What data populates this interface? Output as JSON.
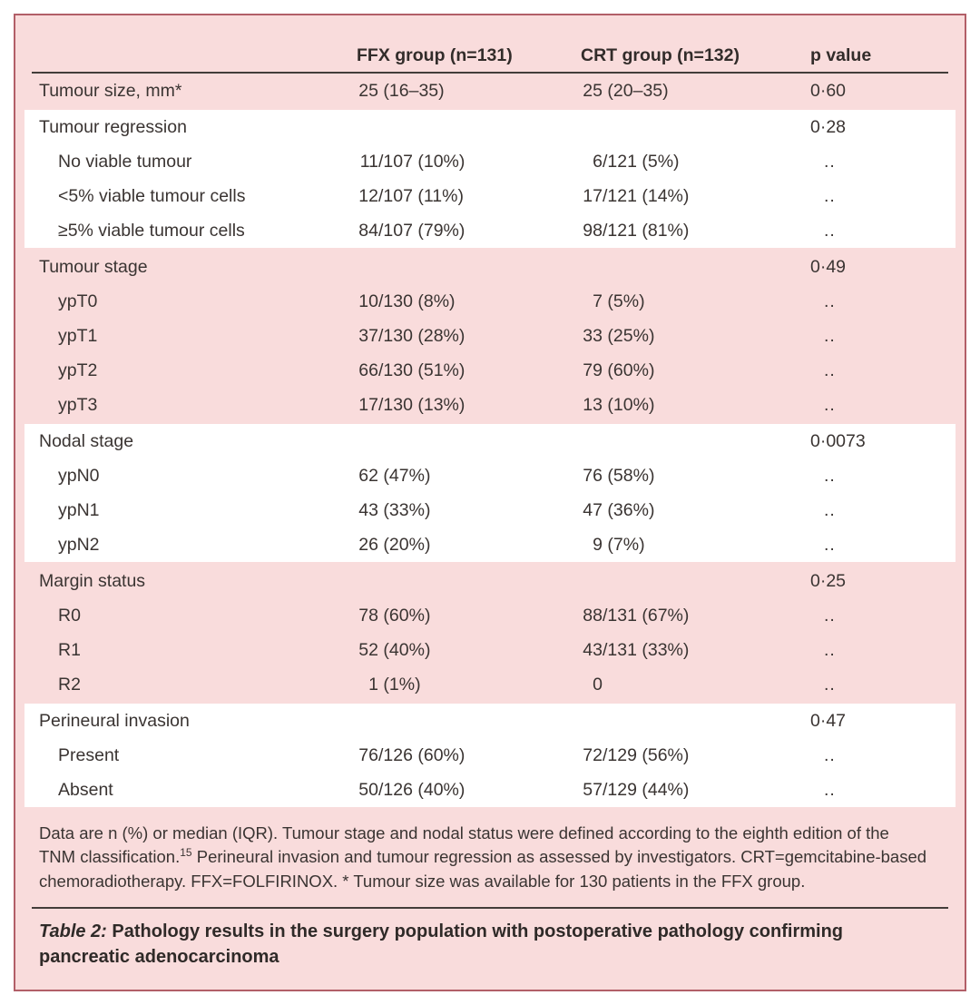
{
  "meta": {
    "panel_background": "#f9dcdc",
    "panel_border": "#b25f68",
    "stripe_background": "#ffffff",
    "text_color": "#3a3432",
    "rule_color": "#433d3a"
  },
  "table": {
    "columns": [
      "",
      "FFX group (n=131)",
      "CRT group (n=132)",
      "p value"
    ],
    "sections": [
      {
        "bg": "pink",
        "rows": [
          {
            "label": "Tumour size, mm*",
            "indent": false,
            "ffx": "25 (16–35)",
            "crt": "25 (20–35)",
            "p": "0·60"
          }
        ]
      },
      {
        "bg": "white",
        "rows": [
          {
            "label": "Tumour regression",
            "indent": false,
            "ffx": "",
            "crt": "",
            "p": "0·28"
          },
          {
            "label": "No viable tumour",
            "indent": true,
            "ffx": "11/107 (10%)",
            "crt": "6/121 (5%)",
            "p": ".."
          },
          {
            "label": "<5% viable tumour cells",
            "indent": true,
            "ffx": "12/107 (11%)",
            "crt": "17/121 (14%)",
            "p": ".."
          },
          {
            "label": "≥5% viable tumour cells",
            "indent": true,
            "ffx": "84/107 (79%)",
            "crt": "98/121 (81%)",
            "p": ".."
          }
        ]
      },
      {
        "bg": "pink",
        "rows": [
          {
            "label": "Tumour stage",
            "indent": false,
            "ffx": "",
            "crt": "",
            "p": "0·49"
          },
          {
            "label": "ypT0",
            "indent": true,
            "ffx": "10/130 (8%)",
            "crt": "7 (5%)",
            "p": ".."
          },
          {
            "label": "ypT1",
            "indent": true,
            "ffx": "37/130 (28%)",
            "crt": "33 (25%)",
            "p": ".."
          },
          {
            "label": "ypT2",
            "indent": true,
            "ffx": "66/130 (51%)",
            "crt": "79 (60%)",
            "p": ".."
          },
          {
            "label": "ypT3",
            "indent": true,
            "ffx": "17/130 (13%)",
            "crt": "13 (10%)",
            "p": ".."
          }
        ]
      },
      {
        "bg": "white",
        "rows": [
          {
            "label": "Nodal stage",
            "indent": false,
            "ffx": "",
            "crt": "",
            "p": "0·0073"
          },
          {
            "label": "ypN0",
            "indent": true,
            "ffx": "62 (47%)",
            "crt": "76 (58%)",
            "p": ".."
          },
          {
            "label": "ypN1",
            "indent": true,
            "ffx": "43 (33%)",
            "crt": "47 (36%)",
            "p": ".."
          },
          {
            "label": "ypN2",
            "indent": true,
            "ffx": "26 (20%)",
            "crt": "9 (7%)",
            "p": ".."
          }
        ]
      },
      {
        "bg": "pink",
        "rows": [
          {
            "label": "Margin status",
            "indent": false,
            "ffx": "",
            "crt": "",
            "p": "0·25"
          },
          {
            "label": "R0",
            "indent": true,
            "ffx": "78 (60%)",
            "crt": "88/131 (67%)",
            "p": ".."
          },
          {
            "label": "R1",
            "indent": true,
            "ffx": "52 (40%)",
            "crt": "43/131 (33%)",
            "p": ".."
          },
          {
            "label": "R2",
            "indent": true,
            "ffx": "1 (1%)",
            "crt": "0",
            "p": ".."
          }
        ]
      },
      {
        "bg": "white",
        "rows": [
          {
            "label": "Perineural invasion",
            "indent": false,
            "ffx": "",
            "crt": "",
            "p": "0·47"
          },
          {
            "label": "Present",
            "indent": true,
            "ffx": "76/126 (60%)",
            "crt": "72/129 (56%)",
            "p": ".."
          },
          {
            "label": "Absent",
            "indent": true,
            "ffx": "50/126 (40%)",
            "crt": "57/129 (44%)",
            "p": ".."
          }
        ]
      }
    ]
  },
  "footnote": {
    "part1": "Data are n (%) or median (IQR). Tumour stage and nodal status were defined according to the eighth edition of the TNM classification.",
    "sup": "15",
    "part2": " Perineural invasion and tumour regression as assessed by investigators. CRT=gemcitabine-based chemoradiotherapy. FFX=FOLFIRINOX. * Tumour size was available for 130 patients in the FFX group."
  },
  "caption": {
    "label": "Table 2:",
    "text": " Pathology results in the surgery population with postoperative pathology confirming pancreatic adenocarcinoma"
  }
}
